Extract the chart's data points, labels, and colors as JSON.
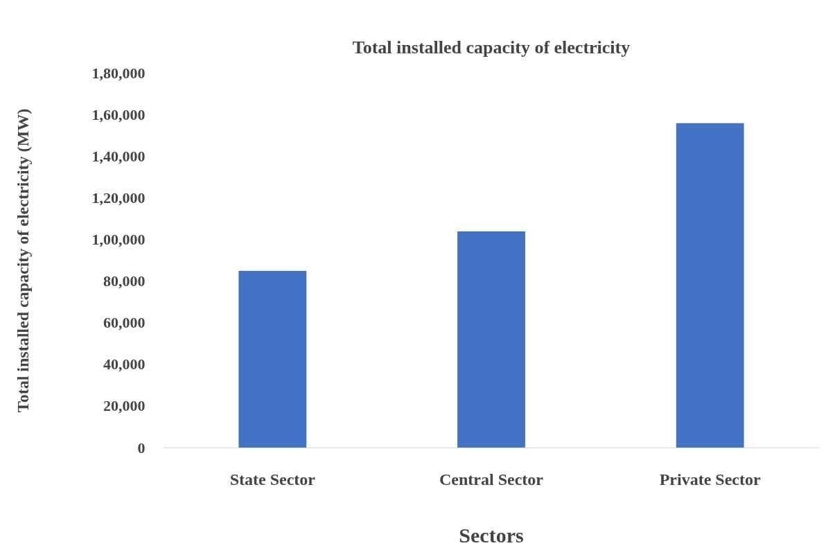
{
  "chart_data": {
    "type": "bar",
    "title": "Total installed capacity of electricity",
    "xlabel": "Sectors",
    "ylabel": "Total installed capacity of electricity (MW)",
    "categories": [
      "State Sector",
      "Central Sector",
      "Private Sector"
    ],
    "values": [
      85000,
      104000,
      156000
    ],
    "color": "#4472c4",
    "ylim": [
      0,
      180000
    ],
    "yticks": [
      0,
      {
        "value": 20000,
        "label": "20,000"
      },
      {
        "value": 40000,
        "label": "40,000"
      },
      {
        "value": 60000,
        "label": "60,000"
      },
      {
        "value": 80000,
        "label": "80,000"
      },
      {
        "value": 100000,
        "label": "1,00,000"
      },
      {
        "value": 120000,
        "label": "1,20,000"
      },
      {
        "value": 140000,
        "label": "1,40,000"
      },
      {
        "value": 160000,
        "label": "1,60,000"
      },
      {
        "value": 180000,
        "label": "1,80,000"
      }
    ],
    "grid": false
  }
}
